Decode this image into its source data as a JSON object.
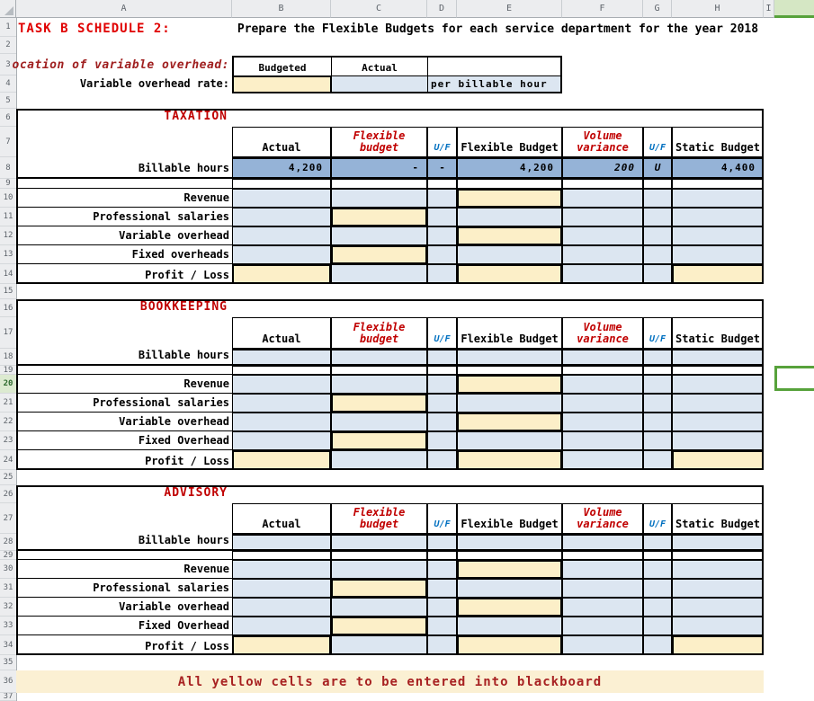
{
  "grid": {
    "columns": [
      "A",
      "B",
      "C",
      "D",
      "E",
      "F",
      "G",
      "H",
      "I"
    ],
    "rows": [
      "1",
      "2",
      "3",
      "4",
      "5",
      "6",
      "7",
      "8",
      "9",
      "10",
      "11",
      "12",
      "13",
      "14",
      "15",
      "16",
      "17",
      "18",
      "19",
      "20",
      "21",
      "22",
      "23",
      "24",
      "25",
      "26",
      "27",
      "28",
      "29",
      "30",
      "31",
      "32",
      "33",
      "34",
      "35",
      "36",
      "37"
    ]
  },
  "header": {
    "task_label": "TASK B SCHEDULE 2:",
    "title": "Prepare the Flexible Budgets for each service department for the year 2018"
  },
  "allocation": {
    "label": "ocation of variable overhead:",
    "budgeted": "Budgeted",
    "actual": "Actual",
    "rate_label": "Variable overhead rate:",
    "unit": "per billable hour"
  },
  "column_headers": {
    "actual": "Actual",
    "flexible_budget": "Flexible budget",
    "uf": "U/F",
    "flexible_budget_2": "Flexible Budget",
    "volume_variance": "Volume variance",
    "uf_2": "U/F",
    "static_budget": "Static Budget"
  },
  "blocks": [
    {
      "title": "TAXATION",
      "row_labels": [
        "Billable hours",
        "Revenue",
        "Professional salaries",
        "Variable overhead",
        "Fixed overheads",
        "Profit / Loss"
      ],
      "billable": {
        "actual": "4,200",
        "flexible_budget": "-",
        "uf_1": "-",
        "flexible_budget_2": "4,200",
        "volume_variance": "200",
        "uf_2": "U",
        "static_budget": "4,400"
      }
    },
    {
      "title": "BOOKKEEPING",
      "row_labels": [
        "Billable hours",
        "Revenue",
        "Professional salaries",
        "Variable overhead",
        "Fixed Overhead",
        "Profit / Loss"
      ],
      "billable": null
    },
    {
      "title": "ADVISORY",
      "row_labels": [
        "Billable hours",
        "Revenue",
        "Professional salaries",
        "Variable overhead",
        "Fixed Overhead",
        "Profit / Loss"
      ],
      "billable": null
    }
  ],
  "banner": {
    "text": "All yellow cells are to be entered into blackboard"
  }
}
